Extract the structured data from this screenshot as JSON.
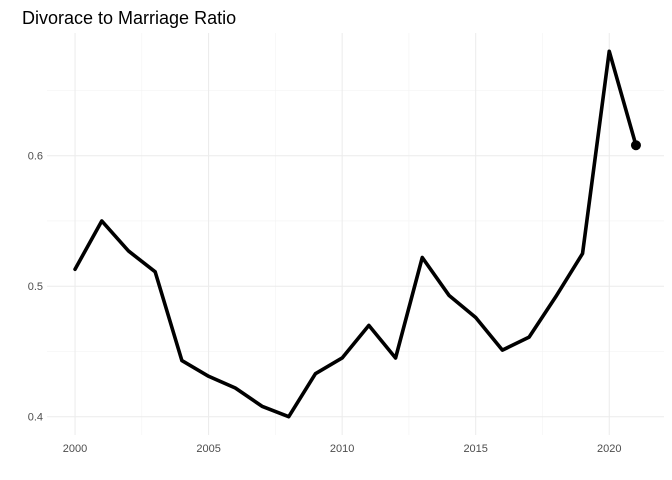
{
  "chart_data": {
    "type": "line",
    "title": "Divorace to Marriage Ratio",
    "xlabel": "",
    "ylabel": "",
    "x": [
      2000,
      2001,
      2002,
      2003,
      2004,
      2005,
      2006,
      2007,
      2008,
      2009,
      2010,
      2011,
      2012,
      2013,
      2014,
      2015,
      2016,
      2017,
      2018,
      2019,
      2020,
      2021
    ],
    "series": [
      {
        "values": [
          0.513,
          0.55,
          0.527,
          0.511,
          0.443,
          0.431,
          0.422,
          0.408,
          0.4,
          0.433,
          0.445,
          0.47,
          0.445,
          0.522,
          0.493,
          0.476,
          0.451,
          0.461,
          0.492,
          0.525,
          0.68,
          0.608
        ]
      }
    ],
    "endpoint_marker": true,
    "x_ticks": [
      "2000",
      "2005",
      "2010",
      "2015",
      "2020"
    ],
    "x_tick_values": [
      2000,
      2005,
      2010,
      2015,
      2020
    ],
    "y_ticks": [
      "0.4",
      "0.5",
      "0.6"
    ],
    "y_tick_values": [
      0.4,
      0.5,
      0.6
    ],
    "xlim": [
      1998.95,
      2022.05
    ],
    "ylim": [
      0.386,
      0.694
    ],
    "grid": true,
    "legend": "none",
    "colors": {
      "line": "#000000",
      "grid_major": "#ebebeb",
      "grid_minor": "#f3f3f3",
      "tick_text": "#4d4d4d",
      "background": "#ffffff"
    }
  }
}
